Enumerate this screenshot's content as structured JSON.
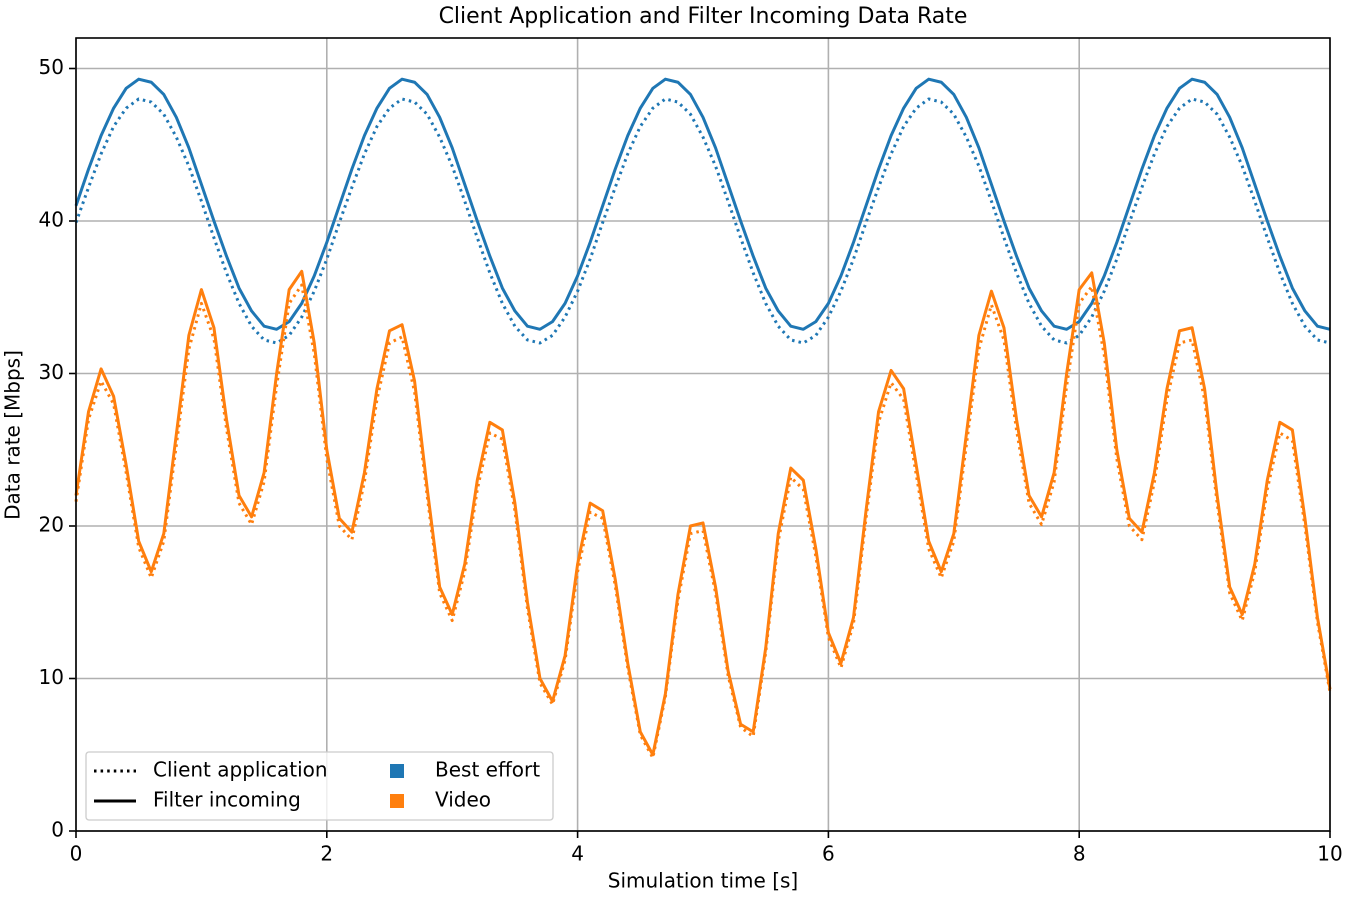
{
  "chart_data": {
    "type": "line",
    "title": "Client Application and Filter Incoming Data Rate",
    "x_label": "Simulation time [s]",
    "y_label": "Data rate [Mbps]",
    "x": [
      0,
      0.1,
      0.2,
      0.3,
      0.4,
      0.5,
      0.6,
      0.7,
      0.8,
      0.9,
      1,
      1.1,
      1.2,
      1.3,
      1.4,
      1.5,
      1.6,
      1.7,
      1.8,
      1.9,
      2,
      2.1,
      2.2,
      2.3,
      2.4,
      2.5,
      2.6,
      2.7,
      2.8,
      2.9,
      3,
      3.1,
      3.2,
      3.3,
      3.4,
      3.5,
      3.6,
      3.7,
      3.8,
      3.9,
      4,
      4.1,
      4.2,
      4.3,
      4.4,
      4.5,
      4.6,
      4.7,
      4.8,
      4.9,
      5,
      5.1,
      5.2,
      5.3,
      5.4,
      5.5,
      5.6,
      5.7,
      5.8,
      5.9,
      6,
      6.1,
      6.2,
      6.3,
      6.4,
      6.5,
      6.6,
      6.7,
      6.8,
      6.9,
      7,
      7.1,
      7.2,
      7.3,
      7.4,
      7.5,
      7.6,
      7.7,
      7.8,
      7.9,
      8,
      8.1,
      8.2,
      8.3,
      8.4,
      8.5,
      8.6,
      8.7,
      8.8,
      8.9,
      9,
      9.1,
      9.2,
      9.3,
      9.4,
      9.5,
      9.6,
      9.7,
      9.8,
      9.9,
      10
    ],
    "line_styles": {
      "client_application": {
        "label": "Client application",
        "dash": "dotted"
      },
      "filter_incoming": {
        "label": "Filter incoming",
        "dash": "solid"
      }
    },
    "series": [
      {
        "name": "Best effort",
        "color": "#1f77b4",
        "client_application": [
          39.9,
          42.2,
          44.4,
          46.2,
          47.4,
          48.0,
          47.8,
          47.0,
          45.5,
          43.6,
          41.3,
          38.9,
          36.6,
          34.6,
          33.1,
          32.2,
          32.0,
          32.5,
          33.7,
          35.4,
          37.5,
          39.9,
          42.2,
          44.4,
          46.2,
          47.4,
          48.0,
          47.8,
          47.0,
          45.5,
          43.6,
          41.3,
          38.9,
          36.6,
          34.6,
          33.1,
          32.2,
          32.0,
          32.5,
          33.7,
          35.4,
          37.5,
          39.9,
          42.2,
          44.4,
          46.2,
          47.4,
          48.0,
          47.8,
          47.0,
          45.5,
          43.6,
          41.3,
          38.9,
          36.6,
          34.6,
          33.1,
          32.2,
          32.0,
          32.5,
          33.7,
          35.4,
          37.5,
          39.9,
          42.2,
          44.4,
          46.2,
          47.4,
          48.0,
          47.8,
          47.0,
          45.5,
          43.6,
          41.3,
          38.9,
          36.6,
          34.6,
          33.1,
          32.2,
          32.0,
          32.5,
          33.7,
          35.4,
          37.5,
          39.9,
          42.2,
          44.4,
          46.2,
          47.4,
          48.0,
          47.8,
          47.0,
          45.5,
          43.6,
          41.3,
          38.9,
          36.6,
          34.6,
          33.1,
          32.2,
          32.0
        ],
        "filter_incoming": [
          41.0,
          43.4,
          45.6,
          47.4,
          48.7,
          49.3,
          49.1,
          48.3,
          46.8,
          44.8,
          42.4,
          40.0,
          37.7,
          35.6,
          34.1,
          33.1,
          32.9,
          33.4,
          34.6,
          36.4,
          38.6,
          41.0,
          43.4,
          45.6,
          47.4,
          48.7,
          49.3,
          49.1,
          48.3,
          46.8,
          44.8,
          42.4,
          40.0,
          37.7,
          35.6,
          34.1,
          33.1,
          32.9,
          33.4,
          34.6,
          36.4,
          38.6,
          41.0,
          43.4,
          45.6,
          47.4,
          48.7,
          49.3,
          49.1,
          48.3,
          46.8,
          44.8,
          42.4,
          40.0,
          37.7,
          35.6,
          34.1,
          33.1,
          32.9,
          33.4,
          34.6,
          36.4,
          38.6,
          41.0,
          43.4,
          45.6,
          47.4,
          48.7,
          49.3,
          49.1,
          48.3,
          46.8,
          44.8,
          42.4,
          40.0,
          37.7,
          35.6,
          34.1,
          33.1,
          32.9,
          33.4,
          34.6,
          36.4,
          38.6,
          41.0,
          43.4,
          45.6,
          47.4,
          48.7,
          49.3,
          49.1,
          48.3,
          46.8,
          44.8,
          42.4,
          40.0,
          37.7,
          35.6,
          34.1,
          33.1,
          32.9
        ]
      },
      {
        "name": "Video",
        "color": "#ff7f0e",
        "client_application": [
          21.6,
          27.0,
          29.5,
          28.0,
          23.5,
          18.6,
          16.6,
          19.0,
          25.3,
          31.6,
          34.6,
          32.3,
          26.4,
          21.5,
          20.1,
          22.9,
          29.2,
          34.6,
          35.8,
          31.3,
          24.4,
          20.0,
          19.1,
          22.9,
          28.3,
          32.0,
          32.4,
          28.8,
          22.0,
          15.6,
          13.8,
          17.0,
          22.4,
          26.1,
          25.7,
          21.0,
          14.6,
          9.7,
          8.3,
          11.2,
          17.0,
          20.9,
          20.5,
          16.1,
          10.7,
          6.3,
          4.8,
          8.8,
          15.1,
          19.5,
          19.7,
          15.6,
          10.2,
          6.8,
          6.2,
          11.7,
          19.0,
          23.2,
          22.4,
          18.0,
          12.7,
          10.7,
          13.6,
          20.5,
          26.8,
          29.4,
          28.3,
          23.4,
          18.5,
          16.6,
          19.0,
          25.3,
          31.6,
          34.5,
          32.2,
          26.3,
          21.5,
          20.1,
          22.9,
          29.2,
          34.6,
          35.7,
          31.2,
          24.4,
          20.0,
          19.1,
          22.9,
          28.3,
          32.0,
          32.2,
          28.3,
          21.5,
          15.6,
          13.8,
          17.0,
          22.4,
          26.1,
          25.6,
          20.0,
          13.7,
          9.1
        ],
        "filter_incoming": [
          22.0,
          27.5,
          30.3,
          28.5,
          24.0,
          19.0,
          17.0,
          19.5,
          26.0,
          32.5,
          35.5,
          33.0,
          27.0,
          22.0,
          20.6,
          23.5,
          30.0,
          35.5,
          36.7,
          32.0,
          25.0,
          20.5,
          19.6,
          23.5,
          29.0,
          32.8,
          33.2,
          29.5,
          22.5,
          16.0,
          14.2,
          17.5,
          23.0,
          26.8,
          26.3,
          21.5,
          15.0,
          10.0,
          8.5,
          11.5,
          17.5,
          21.5,
          21.0,
          16.5,
          11.0,
          6.5,
          5.0,
          9.0,
          15.5,
          20.0,
          20.2,
          16.0,
          10.5,
          7.0,
          6.5,
          12.0,
          19.5,
          23.8,
          23.0,
          18.5,
          13.0,
          11.0,
          14.0,
          21.0,
          27.5,
          30.2,
          29.0,
          24.0,
          19.0,
          17.0,
          19.5,
          26.0,
          32.5,
          35.4,
          33.0,
          27.0,
          22.0,
          20.6,
          23.5,
          30.0,
          35.5,
          36.6,
          32.0,
          25.0,
          20.5,
          19.6,
          23.5,
          29.0,
          32.8,
          33.0,
          29.0,
          22.0,
          16.0,
          14.2,
          17.5,
          23.0,
          26.8,
          26.3,
          20.5,
          14.0,
          9.3
        ]
      }
    ],
    "xlim": [
      0,
      10
    ],
    "xticks": [
      0,
      2,
      4,
      6,
      8,
      10
    ],
    "ylim": [
      0,
      52
    ],
    "yticks": [
      0,
      10,
      20,
      30,
      40,
      50
    ],
    "grid": true,
    "legend_position": "lower left"
  }
}
